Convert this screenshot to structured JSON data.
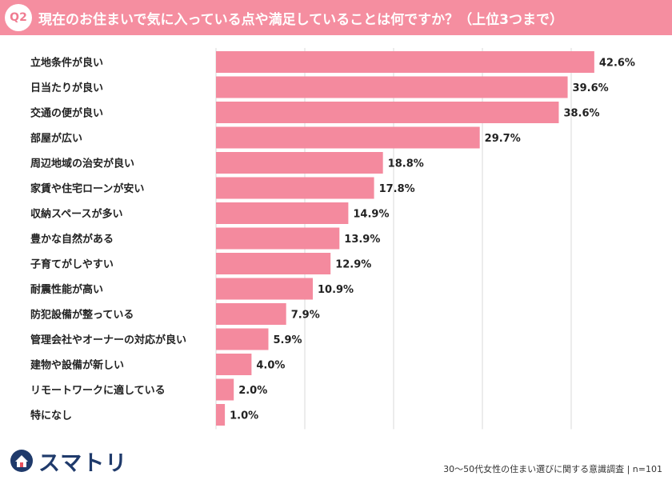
{
  "header": {
    "badge": "Q2",
    "question": "現在のお住まいで気に入っている点や満足していることは何ですか？（上位3つまで）"
  },
  "colors": {
    "header_bg": "#f58ea0",
    "bar": "#f48a9e",
    "grid": "#d9d9d9",
    "logo": "#1f3a6b"
  },
  "chart_data": {
    "type": "bar",
    "orientation": "horizontal",
    "categories": [
      "立地条件が良い",
      "日当たりが良い",
      "交通の便が良い",
      "部屋が広い",
      "周辺地域の治安が良い",
      "家賃や住宅ローンが安い",
      "収納スペースが多い",
      "豊かな自然がある",
      "子育てがしやすい",
      "耐震性能が高い",
      "防犯設備が整っている",
      "管理会社やオーナーの対応が良い",
      "建物や設備が新しい",
      "リモートワークに適している",
      "特になし"
    ],
    "values": [
      42.6,
      39.6,
      38.6,
      29.7,
      18.8,
      17.8,
      14.9,
      13.9,
      12.9,
      10.9,
      7.9,
      5.9,
      4.0,
      2.0,
      1.0
    ],
    "value_labels": [
      "42.6%",
      "39.6%",
      "38.6%",
      "29.7%",
      "18.8%",
      "17.8%",
      "14.9%",
      "13.9%",
      "12.9%",
      "10.9%",
      "7.9%",
      "5.9%",
      "4.0%",
      "2.0%",
      "1.0%"
    ],
    "unit": "%",
    "xlim": [
      0,
      45
    ],
    "grid": "vertical"
  },
  "footer": {
    "logo_text": "スマトリ",
    "logo_icon": "house-icon",
    "note": "30～50代女性の住まい選びに関する意識調査 | n=101"
  }
}
